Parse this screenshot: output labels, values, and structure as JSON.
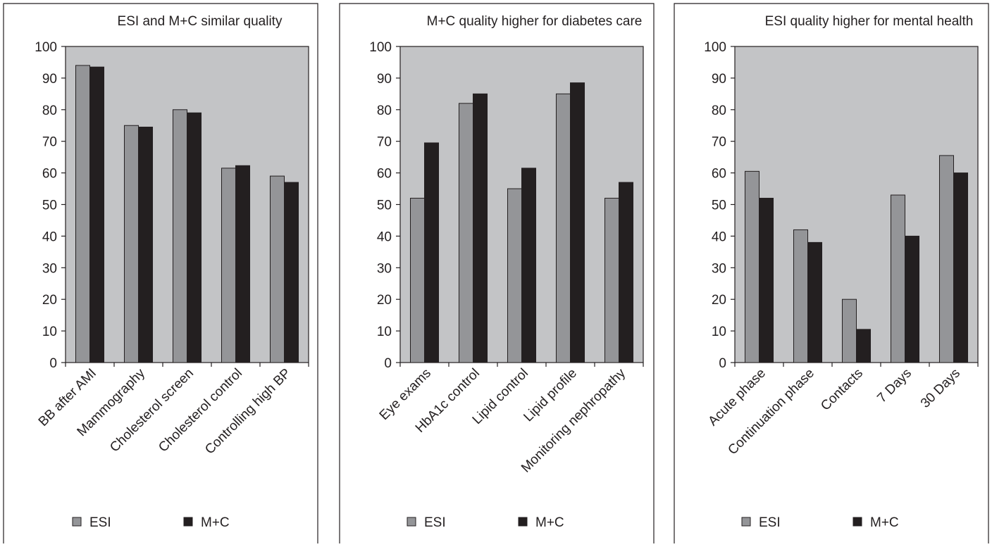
{
  "colors": {
    "esi": "#949598",
    "mc": "#231f20",
    "plot_background": "#c3c4c6",
    "frame": "#231f20"
  },
  "chart_data": [
    {
      "type": "bar",
      "title": "ESI and M+C similar quality",
      "categories": [
        "BB after AMI",
        "Mammography",
        "Cholesterol screen",
        "Cholesterol control",
        "Controlling high BP"
      ],
      "series": [
        {
          "name": "ESI",
          "values": [
            94,
            75,
            80,
            61.5,
            59
          ]
        },
        {
          "name": "M+C",
          "values": [
            93.5,
            74.5,
            79,
            62.3,
            57
          ]
        }
      ],
      "xlabel": "",
      "ylabel": "",
      "ylim": [
        0,
        100
      ],
      "yticks": [
        0,
        10,
        20,
        30,
        40,
        50,
        60,
        70,
        80,
        90,
        100
      ],
      "grid": false,
      "legend_position": "bottom"
    },
    {
      "type": "bar",
      "title": "M+C quality higher for diabetes care",
      "categories": [
        "Eye exams",
        "HbA1c control",
        "Lipid control",
        "Lipid profile",
        "Monitoring nephropathy"
      ],
      "series": [
        {
          "name": "ESI",
          "values": [
            52,
            82,
            55,
            85,
            52
          ]
        },
        {
          "name": "M+C",
          "values": [
            69.5,
            85,
            61.5,
            88.5,
            57
          ]
        }
      ],
      "xlabel": "",
      "ylabel": "",
      "ylim": [
        0,
        100
      ],
      "yticks": [
        0,
        10,
        20,
        30,
        40,
        50,
        60,
        70,
        80,
        90,
        100
      ],
      "grid": false,
      "legend_position": "bottom"
    },
    {
      "type": "bar",
      "title": "ESI quality higher for mental health",
      "categories": [
        "Acute phase",
        "Continuation phase",
        "Contacts",
        "7 Days",
        "30 Days"
      ],
      "series": [
        {
          "name": "ESI",
          "values": [
            60.5,
            42,
            20,
            53,
            65.5
          ]
        },
        {
          "name": "M+C",
          "values": [
            52,
            38,
            10.5,
            40,
            60
          ]
        }
      ],
      "xlabel": "",
      "ylabel": "",
      "ylim": [
        0,
        100
      ],
      "yticks": [
        0,
        10,
        20,
        30,
        40,
        50,
        60,
        70,
        80,
        90,
        100
      ],
      "grid": false,
      "legend_position": "bottom"
    }
  ]
}
